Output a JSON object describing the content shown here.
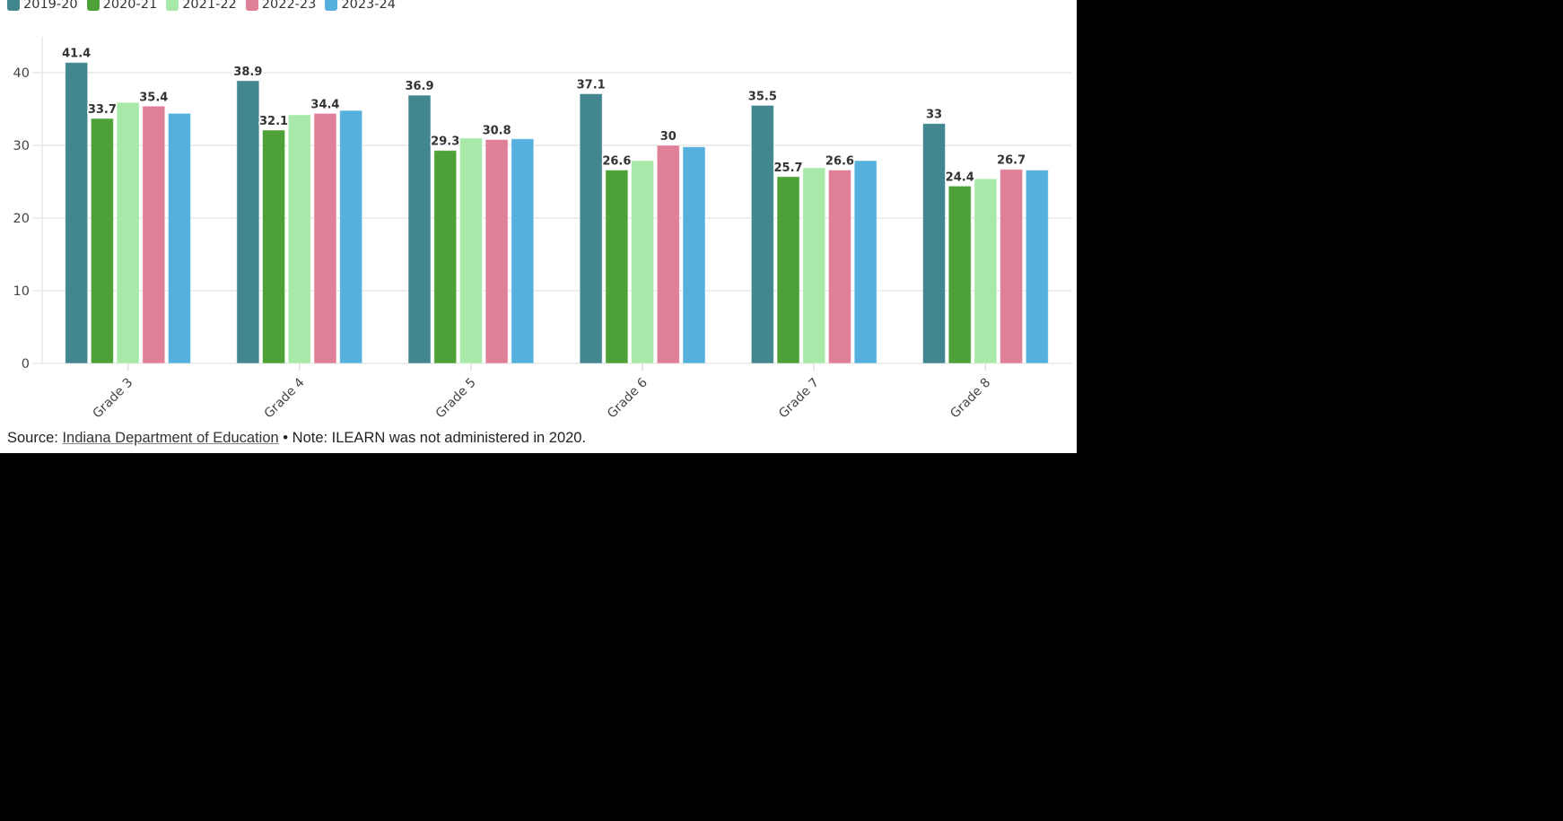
{
  "legend": [
    {
      "label": "2019-20",
      "color": "#42868f"
    },
    {
      "label": "2020-21",
      "color": "#4da136"
    },
    {
      "label": "2021-22",
      "color": "#a8e8a8"
    },
    {
      "label": "2022-23",
      "color": "#e07f98"
    },
    {
      "label": "2023-24",
      "color": "#55b0de"
    }
  ],
  "footer": {
    "source_prefix": "Source: ",
    "source_link": "Indiana Department of Education",
    "note": " • Note: ILEARN was not administered in 2020."
  },
  "chart_data": {
    "type": "bar",
    "title": "",
    "xlabel": "",
    "ylabel": "",
    "ylim": [
      0,
      45
    ],
    "yticks": [
      0,
      10,
      20,
      30,
      40
    ],
    "grid": true,
    "legend_position": "top-left",
    "categories": [
      "Grade 3",
      "Grade 4",
      "Grade 5",
      "Grade 6",
      "Grade 7",
      "Grade 8"
    ],
    "series": [
      {
        "name": "2019-20",
        "color": "#42868f",
        "values": [
          41.4,
          38.9,
          36.9,
          37.1,
          35.5,
          33.0
        ],
        "labeled": true
      },
      {
        "name": "2020-21",
        "color": "#4da136",
        "values": [
          33.7,
          32.1,
          29.3,
          26.6,
          25.7,
          24.4
        ],
        "labeled": true
      },
      {
        "name": "2021-22",
        "color": "#a8e8a8",
        "values": [
          35.9,
          34.2,
          31.0,
          27.9,
          26.9,
          25.4
        ],
        "labeled": false
      },
      {
        "name": "2022-23",
        "color": "#e07f98",
        "values": [
          35.4,
          34.4,
          30.8,
          30.0,
          26.6,
          26.7
        ],
        "labeled": true
      },
      {
        "name": "2023-24",
        "color": "#55b0de",
        "values": [
          34.4,
          34.8,
          30.9,
          29.8,
          27.9,
          26.6
        ],
        "labeled": false
      }
    ],
    "value_labels": [
      [
        "41.4",
        "33.7",
        null,
        "35.4",
        null
      ],
      [
        "38.9",
        "32.1",
        null,
        "34.4",
        null
      ],
      [
        "36.9",
        "29.3",
        null,
        "30.8",
        null
      ],
      [
        "37.1",
        "26.6",
        null,
        "30",
        null
      ],
      [
        "35.5",
        "25.7",
        null,
        "26.6",
        null
      ],
      [
        "33",
        "24.4",
        null,
        "26.7",
        null
      ]
    ]
  }
}
